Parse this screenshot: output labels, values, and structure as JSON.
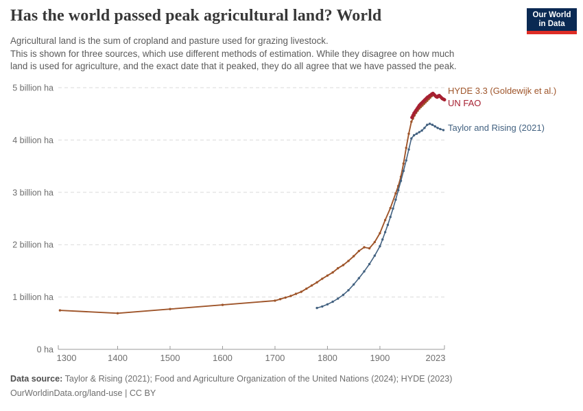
{
  "header": {
    "title": "Has the world passed peak agricultural land? World",
    "subtitle_lines": [
      "Agricultural land is the sum of cropland and pasture used for grazing livestock.",
      "This is shown for three sources, which use different methods of estimation. While they disagree on how much",
      "land is used for agriculture, and the exact date that it peaked, they do all agree that we have passed the peak."
    ],
    "logo": {
      "line1": "Our World",
      "line2": "in Data",
      "navy_color": "#0A2953",
      "red_color": "#DE2D26"
    }
  },
  "chart_data": {
    "type": "line",
    "title": "Agricultural land by source",
    "xlabel": "",
    "ylabel": "",
    "x_axis": {
      "range": [
        1300,
        2023
      ],
      "ticks": [
        {
          "year": 1300,
          "label": "1300"
        },
        {
          "year": 1400,
          "label": "1400"
        },
        {
          "year": 1500,
          "label": "1500"
        },
        {
          "year": 1600,
          "label": "1600"
        },
        {
          "year": 1700,
          "label": "1700"
        },
        {
          "year": 1800,
          "label": "1800"
        },
        {
          "year": 1900,
          "label": "1900"
        },
        {
          "year": 2023,
          "label": "2023"
        }
      ]
    },
    "y_axis": {
      "range_billion_ha": [
        0,
        5
      ],
      "gridlines": [
        {
          "value": 0,
          "label": "0 ha"
        },
        {
          "value": 1,
          "label": "1 billion ha"
        },
        {
          "value": 2,
          "label": "2 billion ha"
        },
        {
          "value": 3,
          "label": "3 billion ha"
        },
        {
          "value": 4,
          "label": "4 billion ha"
        },
        {
          "value": 5,
          "label": "5 billion ha"
        }
      ],
      "grid_style": "dashed"
    },
    "legend_position": "right-of-line-ends",
    "series": [
      {
        "name": "HYDE 3.3 (Goldewijk et al.)",
        "color": "#9E5429",
        "unit": "billion ha",
        "points": [
          [
            1290,
            0.745
          ],
          [
            1400,
            0.69
          ],
          [
            1500,
            0.77
          ],
          [
            1600,
            0.85
          ],
          [
            1700,
            0.93
          ],
          [
            1710,
            0.96
          ],
          [
            1720,
            0.99
          ],
          [
            1730,
            1.02
          ],
          [
            1740,
            1.06
          ],
          [
            1750,
            1.1
          ],
          [
            1760,
            1.16
          ],
          [
            1770,
            1.22
          ],
          [
            1780,
            1.28
          ],
          [
            1790,
            1.35
          ],
          [
            1800,
            1.41
          ],
          [
            1810,
            1.47
          ],
          [
            1820,
            1.55
          ],
          [
            1830,
            1.61
          ],
          [
            1840,
            1.69
          ],
          [
            1850,
            1.78
          ],
          [
            1860,
            1.88
          ],
          [
            1870,
            1.95
          ],
          [
            1880,
            1.93
          ],
          [
            1890,
            2.05
          ],
          [
            1900,
            2.22
          ],
          [
            1910,
            2.47
          ],
          [
            1920,
            2.7
          ],
          [
            1930,
            2.98
          ],
          [
            1935,
            3.12
          ],
          [
            1940,
            3.3
          ],
          [
            1945,
            3.55
          ],
          [
            1950,
            3.85
          ],
          [
            1955,
            4.12
          ],
          [
            1960,
            4.35
          ],
          [
            1963,
            4.41
          ],
          [
            1966,
            4.47
          ],
          [
            1969,
            4.52
          ],
          [
            1972,
            4.56
          ],
          [
            1975,
            4.6
          ],
          [
            1978,
            4.63
          ],
          [
            1981,
            4.66
          ],
          [
            1984,
            4.69
          ],
          [
            1987,
            4.72
          ],
          [
            1990,
            4.75
          ],
          [
            1993,
            4.78
          ],
          [
            1996,
            4.81
          ],
          [
            1999,
            4.84
          ],
          [
            2002,
            4.86
          ],
          [
            2005,
            4.85
          ],
          [
            2008,
            4.82
          ],
          [
            2011,
            4.82
          ],
          [
            2014,
            4.83
          ],
          [
            2017,
            4.81
          ],
          [
            2020,
            4.78
          ],
          [
            2023,
            4.76
          ]
        ]
      },
      {
        "name": "Taylor and Rising (2021)",
        "color": "#426180",
        "unit": "billion ha",
        "points": [
          [
            1780,
            0.79
          ],
          [
            1790,
            0.82
          ],
          [
            1800,
            0.86
          ],
          [
            1810,
            0.91
          ],
          [
            1820,
            0.97
          ],
          [
            1830,
            1.04
          ],
          [
            1840,
            1.13
          ],
          [
            1850,
            1.24
          ],
          [
            1860,
            1.36
          ],
          [
            1870,
            1.49
          ],
          [
            1880,
            1.63
          ],
          [
            1890,
            1.79
          ],
          [
            1900,
            1.97
          ],
          [
            1905,
            2.1
          ],
          [
            1910,
            2.24
          ],
          [
            1915,
            2.38
          ],
          [
            1920,
            2.53
          ],
          [
            1925,
            2.69
          ],
          [
            1930,
            2.86
          ],
          [
            1935,
            3.04
          ],
          [
            1940,
            3.22
          ],
          [
            1945,
            3.41
          ],
          [
            1950,
            3.61
          ],
          [
            1955,
            3.82
          ],
          [
            1960,
            4.03
          ],
          [
            1965,
            4.09
          ],
          [
            1970,
            4.12
          ],
          [
            1975,
            4.15
          ],
          [
            1980,
            4.18
          ],
          [
            1985,
            4.23
          ],
          [
            1990,
            4.29
          ],
          [
            1995,
            4.31
          ],
          [
            2000,
            4.29
          ],
          [
            2005,
            4.26
          ],
          [
            2010,
            4.23
          ],
          [
            2015,
            4.21
          ],
          [
            2021,
            4.19
          ]
        ]
      },
      {
        "name": "UN FAO",
        "color": "#A62031",
        "unit": "billion ha",
        "points": [
          [
            1961,
            4.43
          ],
          [
            1963,
            4.47
          ],
          [
            1965,
            4.51
          ],
          [
            1967,
            4.54
          ],
          [
            1969,
            4.57
          ],
          [
            1971,
            4.6
          ],
          [
            1973,
            4.63
          ],
          [
            1975,
            4.66
          ],
          [
            1977,
            4.68
          ],
          [
            1979,
            4.7
          ],
          [
            1981,
            4.72
          ],
          [
            1983,
            4.74
          ],
          [
            1985,
            4.76
          ],
          [
            1987,
            4.78
          ],
          [
            1989,
            4.8
          ],
          [
            1991,
            4.82
          ],
          [
            1993,
            4.83
          ],
          [
            1995,
            4.85
          ],
          [
            1997,
            4.86
          ],
          [
            1999,
            4.88
          ],
          [
            2001,
            4.89
          ],
          [
            2003,
            4.87
          ],
          [
            2005,
            4.85
          ],
          [
            2007,
            4.83
          ],
          [
            2009,
            4.82
          ],
          [
            2011,
            4.84
          ],
          [
            2013,
            4.85
          ],
          [
            2015,
            4.83
          ],
          [
            2017,
            4.81
          ],
          [
            2019,
            4.79
          ],
          [
            2021,
            4.78
          ],
          [
            2023,
            4.77
          ]
        ]
      }
    ]
  },
  "footer": {
    "datasource_label": "Data source:",
    "sources": "Taylor & Rising (2021); Food and Agriculture Organization of the United Nations (2024); HYDE (2023)",
    "link_line": "OurWorldinData.org/land-use | CC BY"
  }
}
